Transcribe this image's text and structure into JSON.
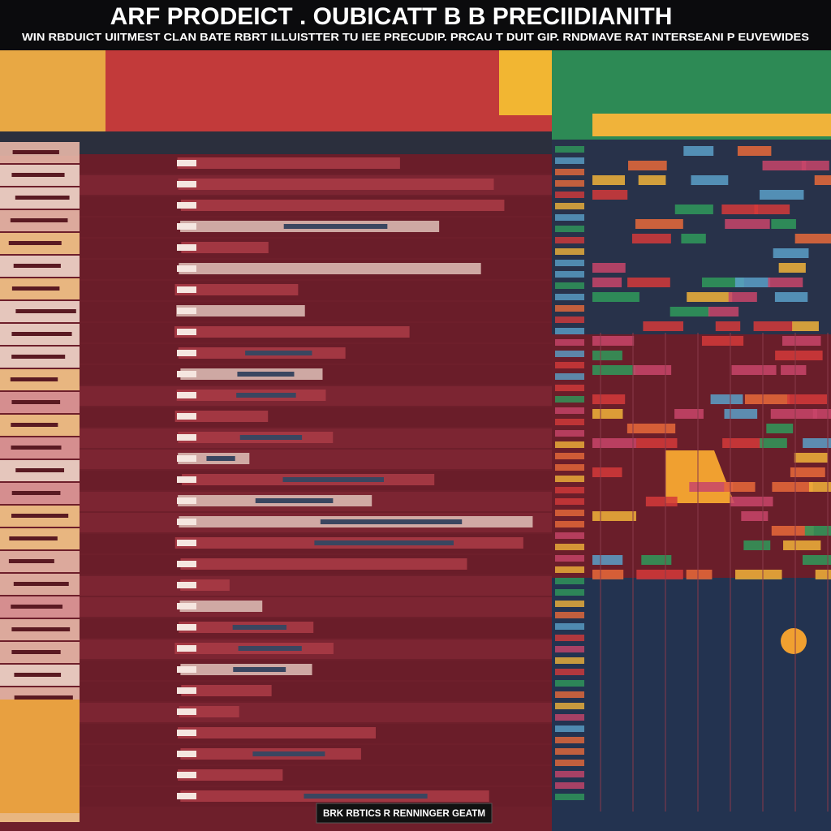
{
  "header": {
    "title": "ARF PRODEICT . OUBICATT B B PRECIIDIANITH",
    "subtitle": "WIN RBDUICT UIITMEST CLAN BATE RBRT ILLUISTTER TU IEE PRECUDIP. PRCAU T DUIT GIP. RNDMAVE RAT INTERSEANI P EUVEWIDES"
  },
  "footer": {
    "label": "BRK RBTICS R RENNINGER GEATM"
  }
}
